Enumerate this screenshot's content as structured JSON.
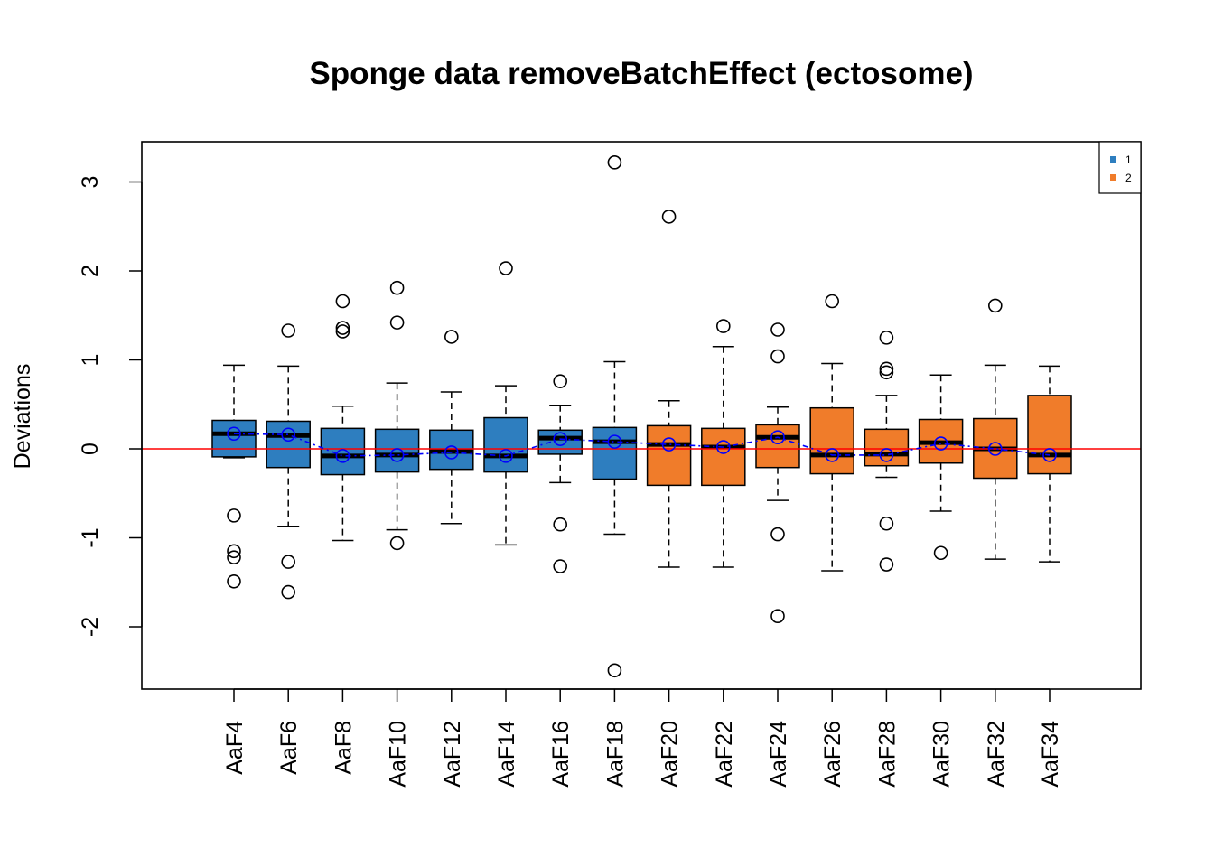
{
  "chart_data": {
    "type": "boxplot",
    "title": "Sponge data removeBatchEffect (ectosome)",
    "xlabel": "",
    "ylabel": "Deviations",
    "ylim": [
      -2.7,
      3.45
    ],
    "yticks": [
      -2,
      -1,
      0,
      1,
      2,
      3
    ],
    "reference_line": {
      "y": 0,
      "color": "#ff0000"
    },
    "mean_line_color": "#0000ff",
    "legend": {
      "position": "top-right",
      "entries": [
        {
          "label": "1",
          "color": "#2e7ebf"
        },
        {
          "label": "2",
          "color": "#f07c2a"
        }
      ]
    },
    "groups": [
      {
        "name": "AaF4",
        "batch": "1",
        "lower_whisker": -0.1,
        "q1": -0.09,
        "median": 0.17,
        "q3": 0.32,
        "upper_whisker": 0.94,
        "mean": 0.17,
        "outliers": [
          -0.75,
          -1.15,
          -1.22,
          -1.49
        ]
      },
      {
        "name": "AaF6",
        "batch": "1",
        "lower_whisker": -0.87,
        "q1": -0.21,
        "median": 0.15,
        "q3": 0.31,
        "upper_whisker": 0.93,
        "mean": 0.16,
        "outliers": [
          1.33,
          -1.27,
          -1.61
        ]
      },
      {
        "name": "AaF8",
        "batch": "1",
        "lower_whisker": -1.03,
        "q1": -0.29,
        "median": -0.08,
        "q3": 0.23,
        "upper_whisker": 0.48,
        "mean": -0.08,
        "outliers": [
          1.66,
          1.36,
          1.32
        ]
      },
      {
        "name": "AaF10",
        "batch": "1",
        "lower_whisker": -0.91,
        "q1": -0.26,
        "median": -0.07,
        "q3": 0.22,
        "upper_whisker": 0.74,
        "mean": -0.07,
        "outliers": [
          1.81,
          1.42,
          -1.06
        ]
      },
      {
        "name": "AaF12",
        "batch": "1",
        "lower_whisker": -0.84,
        "q1": -0.23,
        "median": -0.03,
        "q3": 0.21,
        "upper_whisker": 0.64,
        "mean": -0.04,
        "outliers": [
          1.26
        ]
      },
      {
        "name": "AaF14",
        "batch": "1",
        "lower_whisker": -1.08,
        "q1": -0.26,
        "median": -0.08,
        "q3": 0.35,
        "upper_whisker": 0.71,
        "mean": -0.08,
        "outliers": [
          2.03
        ]
      },
      {
        "name": "AaF16",
        "batch": "1",
        "lower_whisker": -0.38,
        "q1": -0.06,
        "median": 0.12,
        "q3": 0.21,
        "upper_whisker": 0.49,
        "mean": 0.11,
        "outliers": [
          0.76,
          -0.85,
          -1.32
        ]
      },
      {
        "name": "AaF18",
        "batch": "1",
        "lower_whisker": -0.96,
        "q1": -0.34,
        "median": 0.08,
        "q3": 0.24,
        "upper_whisker": 0.98,
        "mean": 0.08,
        "outliers": [
          3.22,
          -2.49
        ]
      },
      {
        "name": "AaF20",
        "batch": "2",
        "lower_whisker": -1.33,
        "q1": -0.41,
        "median": 0.05,
        "q3": 0.26,
        "upper_whisker": 0.54,
        "mean": 0.05,
        "outliers": [
          2.61
        ]
      },
      {
        "name": "AaF22",
        "batch": "2",
        "lower_whisker": -1.33,
        "q1": -0.41,
        "median": 0.02,
        "q3": 0.23,
        "upper_whisker": 1.15,
        "mean": 0.02,
        "outliers": [
          1.38
        ]
      },
      {
        "name": "AaF24",
        "batch": "2",
        "lower_whisker": -0.58,
        "q1": -0.21,
        "median": 0.13,
        "q3": 0.27,
        "upper_whisker": 0.47,
        "mean": 0.13,
        "outliers": [
          1.34,
          1.04,
          -0.96,
          -1.88
        ]
      },
      {
        "name": "AaF26",
        "batch": "2",
        "lower_whisker": -1.37,
        "q1": -0.28,
        "median": -0.07,
        "q3": 0.46,
        "upper_whisker": 0.96,
        "mean": -0.07,
        "outliers": [
          1.66
        ]
      },
      {
        "name": "AaF28",
        "batch": "2",
        "lower_whisker": -0.32,
        "q1": -0.19,
        "median": -0.06,
        "q3": 0.22,
        "upper_whisker": 0.6,
        "mean": -0.07,
        "outliers": [
          1.25,
          0.9,
          0.86,
          -0.84,
          -1.3
        ]
      },
      {
        "name": "AaF30",
        "batch": "2",
        "lower_whisker": -0.7,
        "q1": -0.16,
        "median": 0.07,
        "q3": 0.33,
        "upper_whisker": 0.83,
        "mean": 0.06,
        "outliers": [
          -1.17
        ]
      },
      {
        "name": "AaF32",
        "batch": "2",
        "lower_whisker": -1.24,
        "q1": -0.33,
        "median": 0.0,
        "q3": 0.34,
        "upper_whisker": 0.94,
        "mean": 0.0,
        "outliers": [
          1.61
        ]
      },
      {
        "name": "AaF34",
        "batch": "2",
        "lower_whisker": -1.27,
        "q1": -0.28,
        "median": -0.07,
        "q3": 0.6,
        "upper_whisker": 0.93,
        "mean": -0.07,
        "outliers": []
      }
    ]
  }
}
